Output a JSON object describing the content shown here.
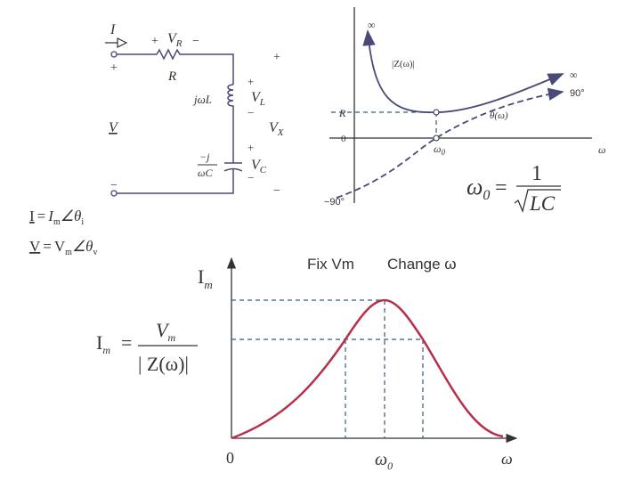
{
  "circuit": {
    "current": "I",
    "plus_r": "+",
    "vr": {
      "main": "V",
      "sub": "R"
    },
    "minus_r": "−",
    "r": "R",
    "plus_left": "+",
    "plus_right": "+",
    "jwl": "jωL",
    "vl_plus": "+",
    "vl": {
      "main": "V",
      "sub": "L"
    },
    "vl_minus": "−",
    "v": "V",
    "vx": {
      "main": "V",
      "sub": "X"
    },
    "vc_plus": "+",
    "cap_num": "−j",
    "cap_den": "ωC",
    "vc": {
      "main": "V",
      "sub": "C"
    },
    "vc_minus": "−",
    "minus_left": "−",
    "minus_right": "−"
  },
  "phasors": {
    "current": {
      "lhs": "I",
      "eq": "=",
      "mag": "I",
      "mag_sub": "m",
      "angle": "∠θ",
      "angle_sub": "i"
    },
    "voltage": {
      "lhs": "V",
      "eq": "=",
      "mag": "V",
      "mag_sub": "m",
      "angle": "∠θ",
      "angle_sub": "v"
    }
  },
  "impedance_plot": {
    "inf_top": "∞",
    "z_label": "|Z(ω)|",
    "inf_right": "∞",
    "plus90": "90°",
    "r": "R",
    "theta": "θ(ω)",
    "zero": "0",
    "omega": "ω",
    "omega0": {
      "main": "ω",
      "sub": "0"
    },
    "minus90": "−90°"
  },
  "resonance_formula": {
    "lhs": {
      "main": "ω",
      "sub": "0"
    },
    "eq": "=",
    "num": "1",
    "den": "LC"
  },
  "response_plot": {
    "fix": "Fix Vm",
    "change": "Change ω",
    "y_label": {
      "main": "I",
      "sub": "m"
    },
    "origin": "0",
    "omega0": {
      "main": "ω",
      "sub": "0"
    },
    "omega": "ω"
  },
  "current_formula": {
    "lhs": {
      "main": "I",
      "sub": "m"
    },
    "eq": "=",
    "num": {
      "main": "V",
      "sub": "m"
    },
    "den": "| Z(ω)|"
  }
}
